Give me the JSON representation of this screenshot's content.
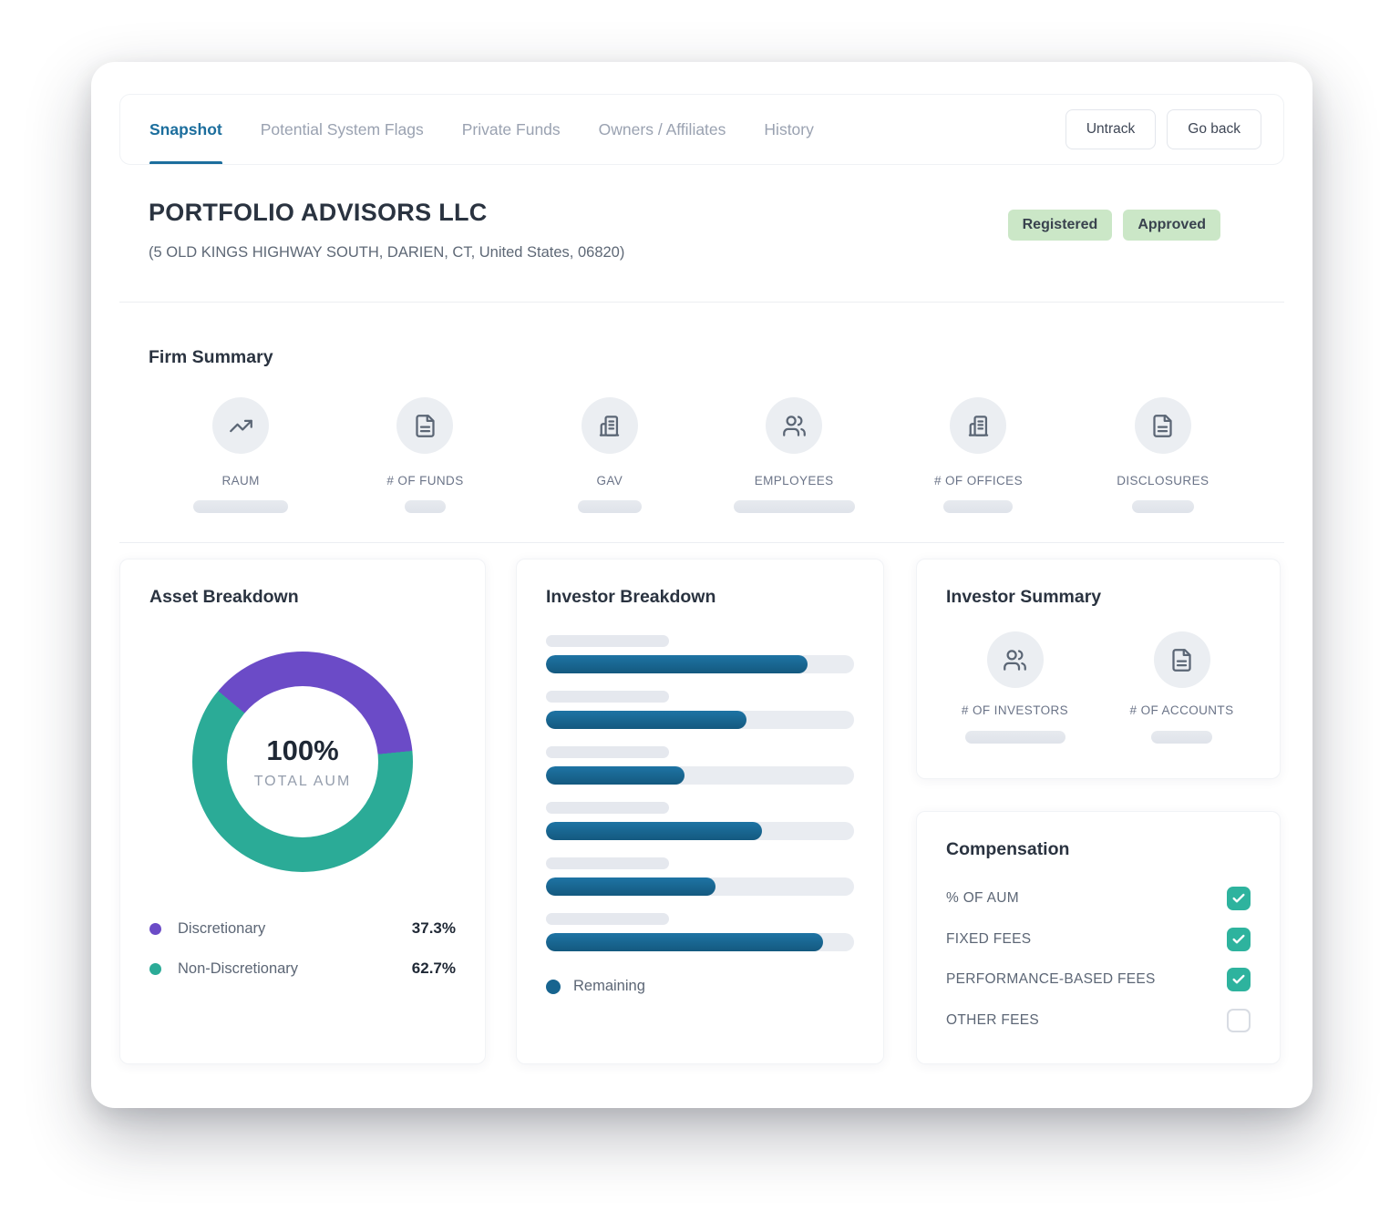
{
  "colors": {
    "accent_blue": "#1C6E9D",
    "bar_blue": "#17648F",
    "purple": "#6B4BC7",
    "teal": "#2BAB97",
    "check_teal": "#2EB39E",
    "badge_green": "#CBE7C7"
  },
  "header": {
    "tabs": [
      {
        "label": "Snapshot",
        "active": true
      },
      {
        "label": "Potential System Flags",
        "active": false
      },
      {
        "label": "Private Funds",
        "active": false
      },
      {
        "label": "Owners / Affiliates",
        "active": false
      },
      {
        "label": "History",
        "active": false
      }
    ],
    "buttons": [
      {
        "label": "Untrack"
      },
      {
        "label": "Go back"
      }
    ]
  },
  "company": {
    "name": "PORTFOLIO ADVISORS LLC",
    "address": "(5 OLD KINGS HIGHWAY SOUTH, DARIEN, CT, United States, 06820)",
    "badges": [
      {
        "label": "Registered"
      },
      {
        "label": "Approved"
      }
    ]
  },
  "firm_summary": {
    "title": "Firm Summary",
    "items": [
      {
        "label": "RAUM",
        "icon": "trend-up-icon",
        "pill_width": 104
      },
      {
        "label": "# OF FUNDS",
        "icon": "document-icon",
        "pill_width": 45
      },
      {
        "label": "GAV",
        "icon": "building-icon",
        "pill_width": 70
      },
      {
        "label": "EMPLOYEES",
        "icon": "people-icon",
        "pill_width": 133
      },
      {
        "label": "# OF OFFICES",
        "icon": "building-icon",
        "pill_width": 76
      },
      {
        "label": "DISCLOSURES",
        "icon": "document-icon",
        "pill_width": 68
      }
    ]
  },
  "asset_breakdown": {
    "title": "Asset Breakdown",
    "chart_data": {
      "type": "pie",
      "center_value": "100%",
      "center_label": "TOTAL AUM",
      "start_angle_deg": -50,
      "segments": [
        {
          "label": "Discretionary",
          "value": 37.3,
          "display": "37.3%",
          "color": "#6B4BC7"
        },
        {
          "label": "Non-Discretionary",
          "value": 62.7,
          "display": "62.7%",
          "color": "#2BAB97"
        }
      ]
    }
  },
  "investor_breakdown": {
    "title": "Investor Breakdown",
    "chart_data": {
      "type": "bar",
      "orientation": "horizontal",
      "values_percent": [
        85,
        65,
        45,
        70,
        55,
        90
      ]
    },
    "legend": {
      "label": "Remaining",
      "color": "#17648F"
    }
  },
  "investor_summary": {
    "title": "Investor Summary",
    "items": [
      {
        "label": "# OF INVESTORS",
        "icon": "people-icon",
        "pill_width": 110
      },
      {
        "label": "# OF ACCOUNTS",
        "icon": "document-icon",
        "pill_width": 67
      }
    ]
  },
  "compensation": {
    "title": "Compensation",
    "items": [
      {
        "label": "% OF AUM",
        "checked": true
      },
      {
        "label": "FIXED FEES",
        "checked": true
      },
      {
        "label": "PERFORMANCE-BASED FEES",
        "checked": true
      },
      {
        "label": "OTHER FEES",
        "checked": false
      }
    ]
  }
}
